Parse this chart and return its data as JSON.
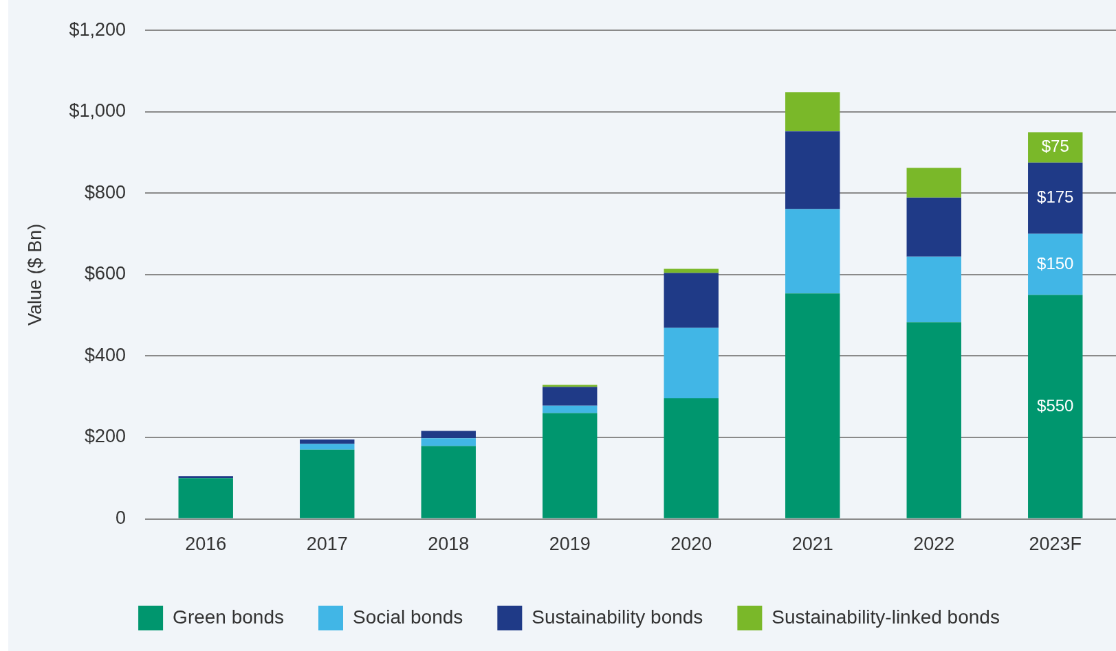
{
  "chart_data": {
    "type": "bar",
    "stacked": true,
    "ylabel": "Value ($ Bn)",
    "categories": [
      "2016",
      "2017",
      "2018",
      "2019",
      "2020",
      "2021",
      "2022",
      "2023F"
    ],
    "series": [
      {
        "name": "Green bonds",
        "color": "#00966e",
        "values": [
          100,
          170,
          179,
          260,
          296,
          554,
          483,
          550
        ],
        "value_labels": [
          null,
          null,
          null,
          null,
          null,
          null,
          null,
          "$550"
        ]
      },
      {
        "name": "Social bonds",
        "color": "#41b6e6",
        "values": [
          0,
          14,
          19,
          18,
          173,
          207,
          161,
          150
        ],
        "value_labels": [
          null,
          null,
          null,
          null,
          null,
          null,
          null,
          "$150"
        ]
      },
      {
        "name": "Sustainability bonds",
        "color": "#1f3a87",
        "values": [
          5,
          11,
          18,
          46,
          135,
          191,
          145,
          175
        ],
        "value_labels": [
          null,
          null,
          null,
          null,
          null,
          null,
          null,
          "$175"
        ]
      },
      {
        "name": "Sustainability-linked bonds",
        "color": "#7ab829",
        "values": [
          0,
          0,
          0,
          5,
          10,
          96,
          73,
          75
        ],
        "value_labels": [
          null,
          null,
          null,
          null,
          null,
          null,
          null,
          "$75"
        ]
      }
    ],
    "ylim": [
      0,
      1200
    ],
    "yticks": [
      {
        "value": 0,
        "label": "0"
      },
      {
        "value": 200,
        "label": "$200"
      },
      {
        "value": 400,
        "label": "$400"
      },
      {
        "value": 600,
        "label": "$600"
      },
      {
        "value": 800,
        "label": "$800"
      },
      {
        "value": 1000,
        "label": "$1,000"
      },
      {
        "value": 1200,
        "label": "$1,200"
      }
    ],
    "grid": "y",
    "legend": "bottom"
  }
}
